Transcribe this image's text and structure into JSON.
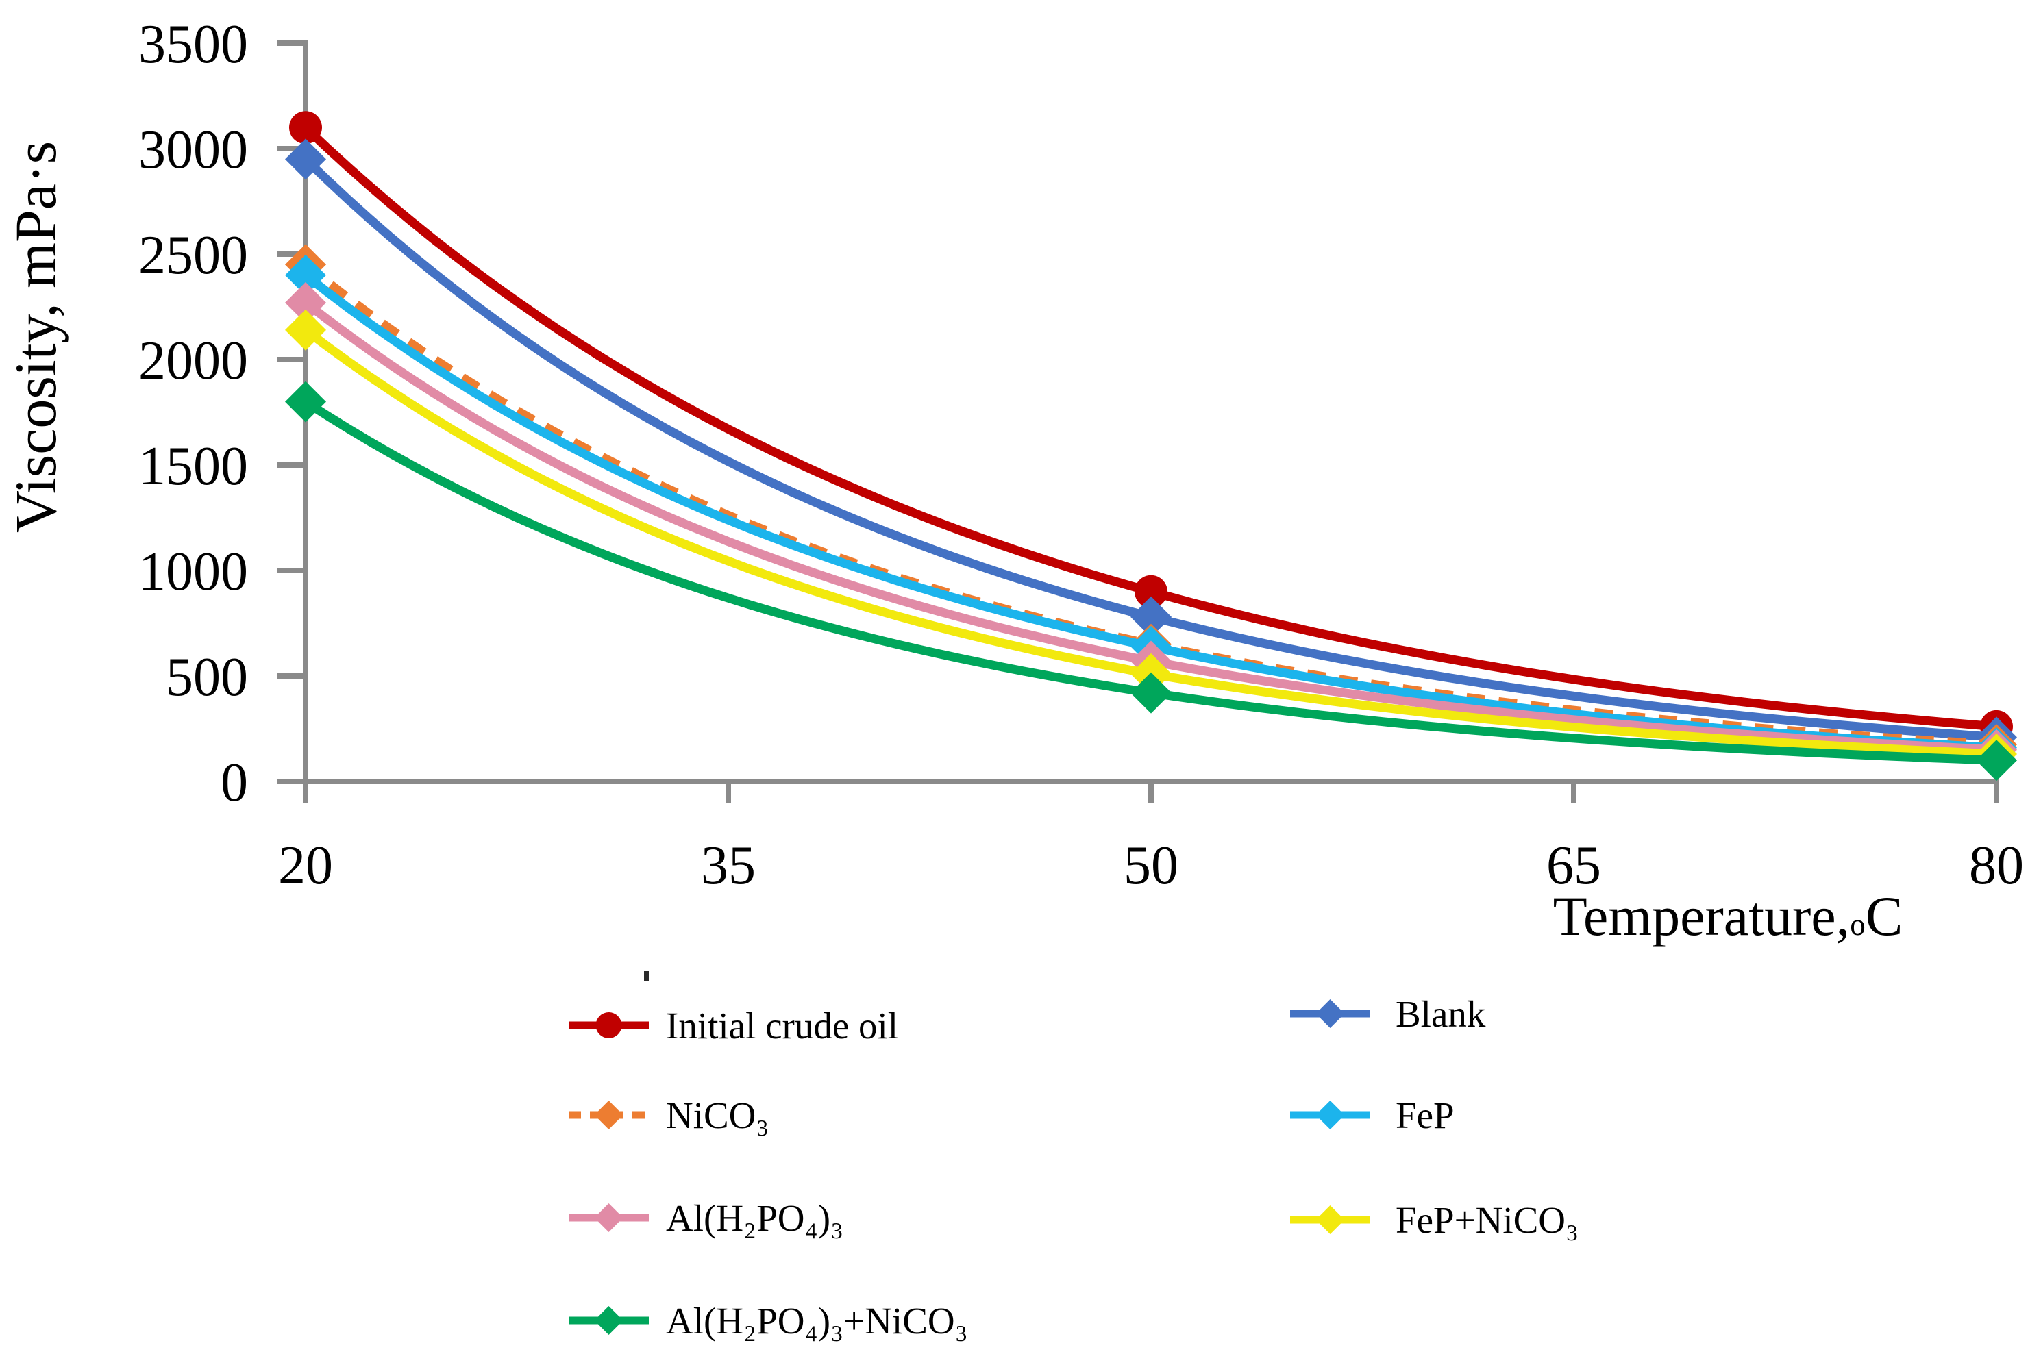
{
  "chart_data": {
    "type": "line",
    "x": [
      20,
      50,
      80
    ],
    "x_axis": {
      "ticks": [
        20,
        35,
        50,
        65,
        80
      ],
      "range": [
        20,
        80
      ],
      "label_parts": [
        "Temperature,",
        "o",
        "C"
      ]
    },
    "y_axis": {
      "ticks": [
        0,
        500,
        1000,
        1500,
        2000,
        2500,
        3000,
        3500
      ],
      "range": [
        0,
        3500
      ],
      "label": "Viscosity, mPa·s"
    },
    "series": [
      {
        "name": "Initial crude oil",
        "values": [
          3100,
          900,
          260
        ],
        "color": "#C00000",
        "marker": "circle",
        "dash": false
      },
      {
        "name": "Blank",
        "values": [
          2950,
          780,
          210
        ],
        "color": "#4472C4",
        "marker": "diamond",
        "dash": false
      },
      {
        "name": "NiCO₃",
        "values": [
          2450,
          650,
          175
        ],
        "color": "#ED7D31",
        "marker": "diamond",
        "dash": true
      },
      {
        "name": "FeP",
        "values": [
          2400,
          640,
          160
        ],
        "color": "#1CB4EC",
        "marker": "diamond",
        "dash": false
      },
      {
        "name": "Al(H₂PO₄)₃",
        "values": [
          2270,
          570,
          150
        ],
        "color": "#E18BA6",
        "marker": "diamond",
        "dash": false
      },
      {
        "name": "FeP+NiCO₃",
        "values": [
          2140,
          510,
          130
        ],
        "color": "#F2E90E",
        "marker": "diamond",
        "dash": false
      },
      {
        "name": "Al(H₂PO₄)₃+NiCO₃",
        "values": [
          1800,
          420,
          100
        ],
        "color": "#00A65B",
        "marker": "diamond",
        "dash": false
      }
    ],
    "legend": {
      "position": "bottom",
      "columns": [
        [
          0,
          2,
          4,
          6
        ],
        [
          1,
          3,
          5
        ]
      ]
    },
    "grid": false,
    "axis_color": "#8A8A8A",
    "interpolation": "exponential-smooth"
  }
}
